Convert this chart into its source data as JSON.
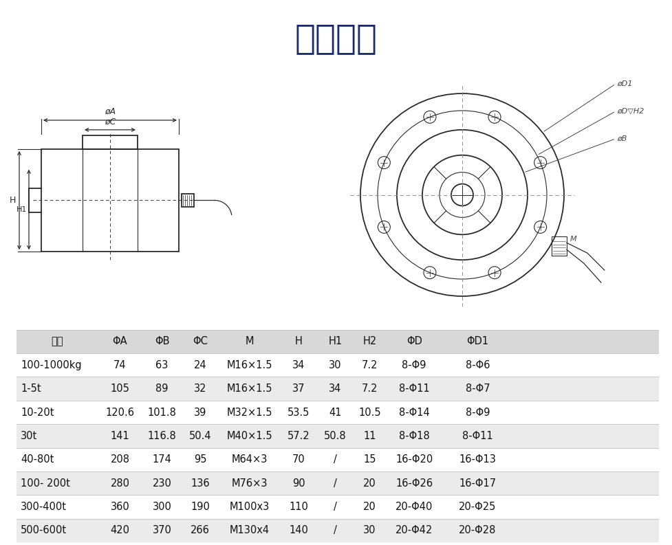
{
  "title": "外形尺寸",
  "title_color": "#1a2b6b",
  "title_fontsize": 36,
  "bg_color": "#ffffff",
  "table_header": [
    "量程",
    "ΦA",
    "ΦB",
    "ΦC",
    "M",
    "H",
    "H1",
    "H2",
    "ΦD",
    "ΦD1"
  ],
  "table_rows": [
    [
      "100-1000kg",
      "74",
      "63",
      "24",
      "M16×1.5",
      "34",
      "30",
      "7.2",
      "8-Φ9",
      "8-Φ6"
    ],
    [
      "1-5t",
      "105",
      "89",
      "32",
      "M16×1.5",
      "37",
      "34",
      "7.2",
      "8-Φ11",
      "8-Φ7"
    ],
    [
      "10-20t",
      "120.6",
      "101.8",
      "39",
      "M32×1.5",
      "53.5",
      "41",
      "10.5",
      "8-Φ14",
      "8-Φ9"
    ],
    [
      "30t",
      "141",
      "116.8",
      "50.4",
      "M40×1.5",
      "57.2",
      "50.8",
      "11",
      "8-Φ18",
      "8-Φ11"
    ],
    [
      "40-80t",
      "208",
      "174",
      "95",
      "M64×3",
      "70",
      "/",
      "15",
      "16-Φ20",
      "16-Φ13"
    ],
    [
      "100- 200t",
      "280",
      "230",
      "136",
      "M76×3",
      "90",
      "/",
      "20",
      "16-Φ26",
      "16-Φ17"
    ],
    [
      "300-400t",
      "360",
      "300",
      "190",
      "M100x3",
      "110",
      "/",
      "20",
      "20-Φ40",
      "20-Φ25"
    ],
    [
      "500-600t",
      "420",
      "370",
      "266",
      "M130x4",
      "140",
      "/",
      "30",
      "20-Φ42",
      "20-Φ28"
    ]
  ],
  "row_colors": [
    "#ffffff",
    "#ebebeb",
    "#ffffff",
    "#ebebeb",
    "#ffffff",
    "#ebebeb",
    "#ffffff",
    "#ebebeb"
  ],
  "header_color": "#d8d8d8",
  "line_color": "#2a2a2a",
  "text_color": "#111111",
  "diagram_line_color": "#2a2a2a"
}
